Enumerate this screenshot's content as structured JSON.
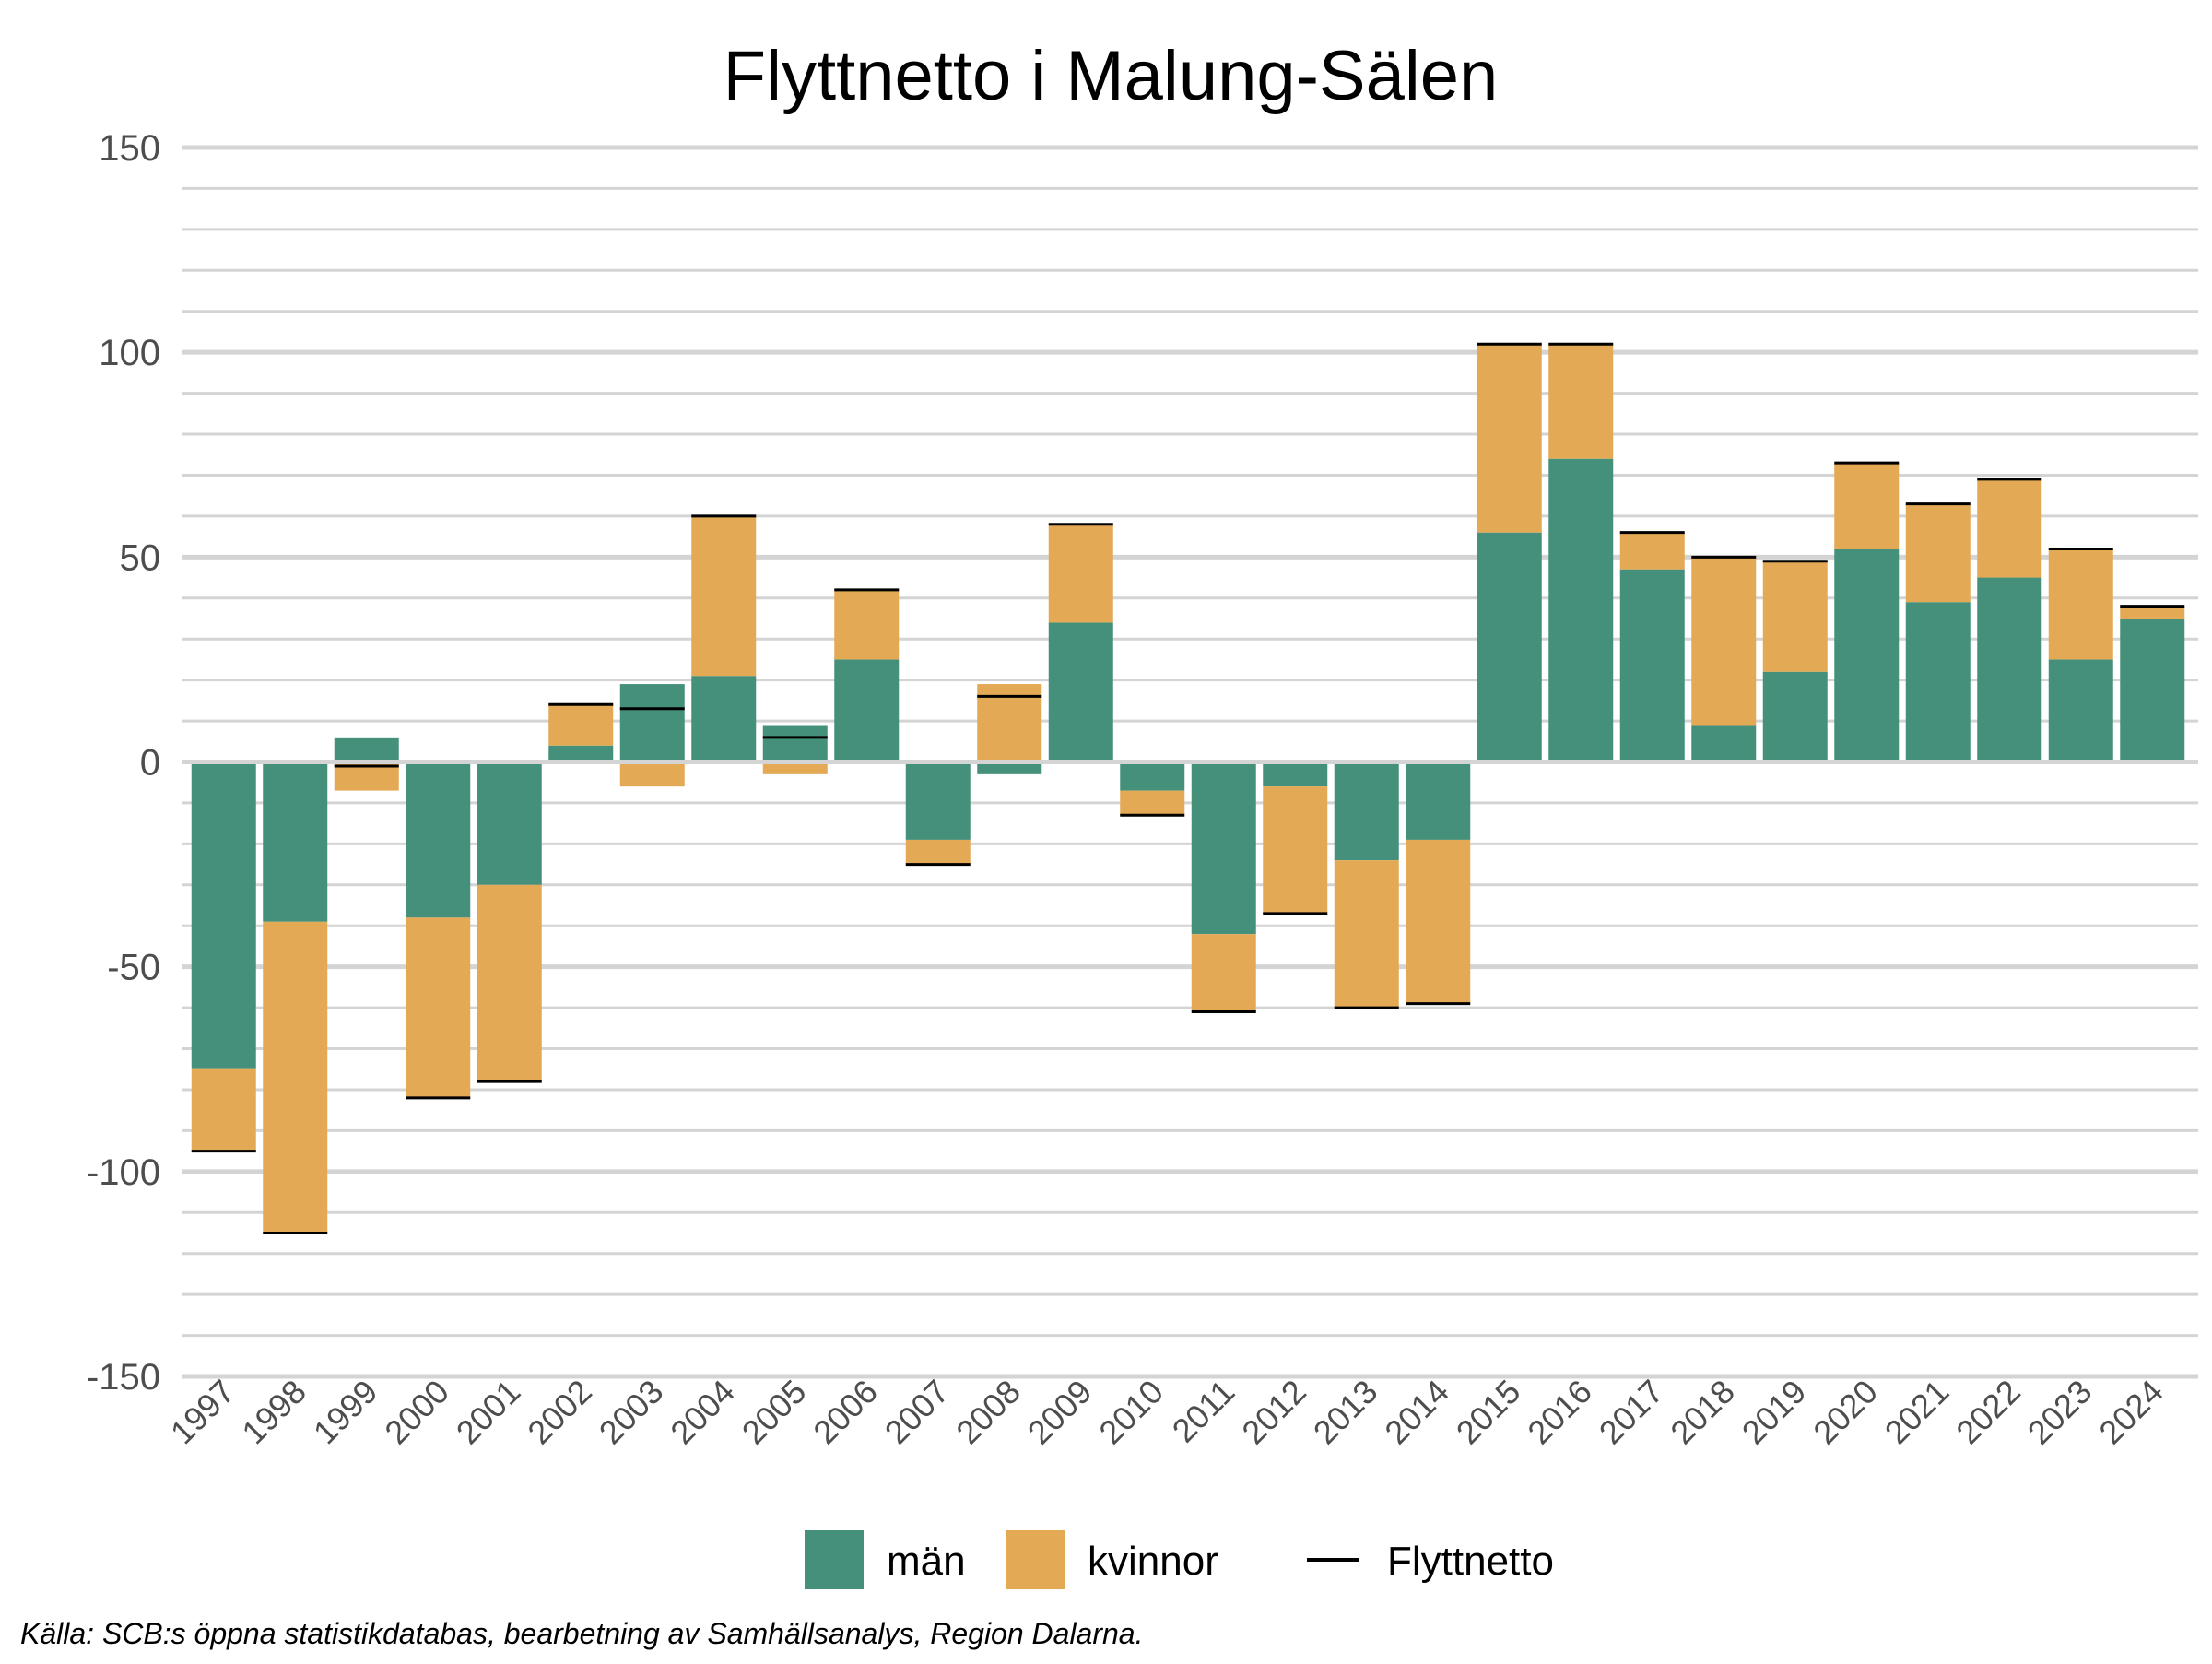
{
  "title": "Flyttnetto i Malung-Sälen",
  "source": "Källa: SCB:s öppna statistikdatabas, bearbetning av Samhällsanalys, Region Dalarna.",
  "colors": {
    "man": "#45907a",
    "kvinnor": "#e3a955",
    "netto": "#000000",
    "grid": "#d4d4d4",
    "tick_label": "#4d4d4d"
  },
  "chart_data": {
    "type": "bar",
    "stacked": true,
    "title": "Flyttnetto i Malung-Sälen",
    "xlabel": "",
    "ylabel": "",
    "ylim": [
      -150,
      150
    ],
    "y_ticks": [
      150,
      100,
      50,
      0,
      -50,
      -100,
      -150
    ],
    "y_tick_labels": [
      "150",
      "100",
      "50",
      "0",
      "-50",
      "-100",
      "-150"
    ],
    "y_minor_step": 10,
    "grid": true,
    "legend_position": "bottom",
    "categories": [
      "1997",
      "1998",
      "1999",
      "2000",
      "2001",
      "2002",
      "2003",
      "2004",
      "2005",
      "2006",
      "2007",
      "2008",
      "2009",
      "2010",
      "2011",
      "2012",
      "2013",
      "2014",
      "2015",
      "2016",
      "2017",
      "2018",
      "2019",
      "2020",
      "2021",
      "2022",
      "2023",
      "2024"
    ],
    "series": [
      {
        "name": "män",
        "kind": "bar",
        "values": [
          -75,
          -39,
          6,
          -38,
          -30,
          4,
          19,
          21,
          9,
          25,
          -19,
          -3,
          34,
          -7,
          -42,
          -6,
          -24,
          -19,
          56,
          74,
          47,
          9,
          22,
          52,
          39,
          45,
          25,
          35
        ]
      },
      {
        "name": "kvinnor",
        "kind": "bar",
        "values": [
          -20,
          -76,
          -7,
          -44,
          -48,
          10,
          -6,
          39,
          -3,
          17,
          -6,
          19,
          24,
          -6,
          -19,
          -31,
          -36,
          -40,
          46,
          28,
          9,
          41,
          27,
          21,
          24,
          24,
          27,
          3
        ]
      },
      {
        "name": "Flyttnetto",
        "kind": "marker",
        "values": [
          -95,
          -115,
          -1,
          -82,
          -78,
          14,
          13,
          60,
          6,
          42,
          -25,
          16,
          58,
          -13,
          -61,
          -37,
          -60,
          -59,
          102,
          102,
          56,
          50,
          49,
          73,
          63,
          69,
          52,
          38
        ]
      }
    ]
  }
}
